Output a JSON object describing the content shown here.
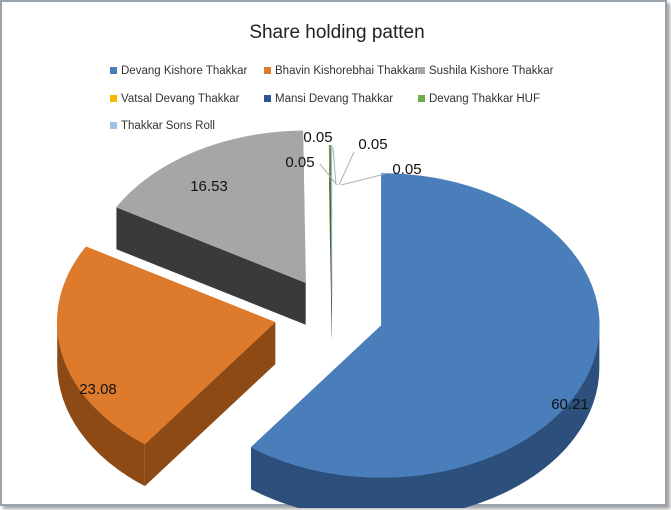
{
  "chart_data": {
    "type": "pie",
    "title": "Share holding patten",
    "series": [
      {
        "name": "Devang Kishore Thakkar",
        "value": 60.21,
        "label": "60.21",
        "color": "#4a7ebb",
        "side_color": "#2c4f7c"
      },
      {
        "name": "Bhavin Kishorebhai Thakkar",
        "value": 23.08,
        "label": "23.08",
        "color": "#dd7a2c",
        "side_color": "#8e4a14"
      },
      {
        "name": "Sushila Kishore Thakkar",
        "value": 16.53,
        "label": "16.53",
        "color": "#a6a6a6",
        "side_color": "#3a3a3a"
      },
      {
        "name": "Vatsal Devang Thakkar",
        "value": 0.05,
        "label": "0.05",
        "color": "#f2b800",
        "side_color": "#8a6a00"
      },
      {
        "name": "Mansi Devang Thakkar",
        "value": 0.05,
        "label": "0.05",
        "color": "#2f5597",
        "side_color": "#1a3060"
      },
      {
        "name": "Devang Thakkar HUF",
        "value": 0.05,
        "label": "0.05",
        "color": "#70ad47",
        "side_color": "#3c6a22"
      },
      {
        "name": "Thakkar Sons Roll",
        "value": 0.05,
        "label": "0.05",
        "color": "#9dc3e6",
        "side_color": "#5b83a8"
      }
    ],
    "style": "3d-exploded-pie",
    "legend_position": "top"
  }
}
